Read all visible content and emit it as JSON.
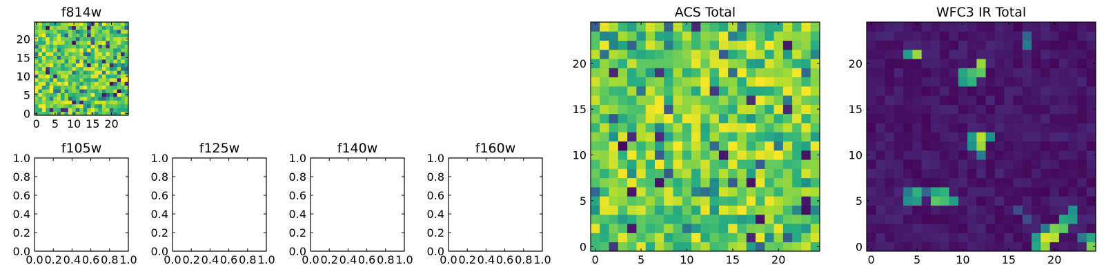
{
  "chart_data": [
    {
      "type": "heatmap",
      "panel": "f814w",
      "title": "f814w",
      "grid_size": [
        25,
        25
      ],
      "colormap": "viridis",
      "xlim": [
        0,
        24
      ],
      "ylim": [
        0,
        24
      ],
      "xticks": [
        "0",
        "5",
        "10",
        "15",
        "20"
      ],
      "yticks": [
        "0",
        "5",
        "10",
        "15",
        "20"
      ],
      "value_range": [
        0.0,
        1.0
      ],
      "pattern": "random noise, values mostly high (green-yellow)"
    },
    {
      "type": "heatmap",
      "panel": "f105w",
      "title": "f105w",
      "empty": true,
      "xlim": [
        0.0,
        1.0
      ],
      "ylim": [
        0.0,
        1.0
      ],
      "xticks": [
        "0.0",
        "0.2",
        "0.4",
        "0.6",
        "0.8",
        "1.0"
      ],
      "yticks": [
        "0.0",
        "0.2",
        "0.4",
        "0.6",
        "0.8",
        "1.0"
      ]
    },
    {
      "type": "heatmap",
      "panel": "f125w",
      "title": "f125w",
      "empty": true,
      "xlim": [
        0.0,
        1.0
      ],
      "ylim": [
        0.0,
        1.0
      ],
      "xticks": [
        "0.0",
        "0.2",
        "0.4",
        "0.6",
        "0.8",
        "1.0"
      ],
      "yticks": [
        "0.0",
        "0.2",
        "0.4",
        "0.6",
        "0.8",
        "1.0"
      ]
    },
    {
      "type": "heatmap",
      "panel": "f140w",
      "title": "f140w",
      "empty": true,
      "xlim": [
        0.0,
        1.0
      ],
      "ylim": [
        0.0,
        1.0
      ],
      "xticks": [
        "0.0",
        "0.2",
        "0.4",
        "0.6",
        "0.8",
        "1.0"
      ],
      "yticks": [
        "0.0",
        "0.2",
        "0.4",
        "0.6",
        "0.8",
        "1.0"
      ]
    },
    {
      "type": "heatmap",
      "panel": "f160w",
      "title": "f160w",
      "empty": true,
      "xlim": [
        0.0,
        1.0
      ],
      "ylim": [
        0.0,
        1.0
      ],
      "xticks": [
        "0.0",
        "0.2",
        "0.4",
        "0.6",
        "0.8",
        "1.0"
      ],
      "yticks": [
        "0.0",
        "0.2",
        "0.4",
        "0.6",
        "0.8",
        "1.0"
      ]
    },
    {
      "type": "heatmap",
      "panel": "acs_total",
      "title": "ACS Total",
      "grid_size": [
        25,
        25
      ],
      "colormap": "viridis",
      "xlim": [
        0,
        24
      ],
      "ylim": [
        0,
        24
      ],
      "xticks": [
        "0",
        "5",
        "10",
        "15",
        "20"
      ],
      "yticks": [
        "0",
        "5",
        "10",
        "15",
        "20"
      ],
      "value_range": [
        0.0,
        1.0
      ],
      "pattern": "random noise, values mostly high (green-yellow), few dark cells"
    },
    {
      "type": "heatmap",
      "panel": "wfc3_ir_total",
      "title": "WFC3 IR Total",
      "grid_size": [
        25,
        25
      ],
      "colormap": "viridis",
      "xlim": [
        0,
        24
      ],
      "ylim": [
        0,
        24
      ],
      "xticks": [
        "0",
        "5",
        "10",
        "15",
        "20"
      ],
      "yticks": [
        "0",
        "5",
        "10",
        "15",
        "20"
      ],
      "value_range": [
        0.0,
        1.0
      ],
      "background_level": 0.08,
      "hotspots": [
        {
          "col": 4,
          "row": 21,
          "value": 0.55
        },
        {
          "col": 5,
          "row": 21,
          "value": 0.85
        },
        {
          "col": 17,
          "row": 23,
          "value": 0.4
        },
        {
          "col": 17,
          "row": 22,
          "value": 0.45
        },
        {
          "col": 10,
          "row": 18,
          "value": 0.55
        },
        {
          "col": 10,
          "row": 19,
          "value": 0.6
        },
        {
          "col": 11,
          "row": 18,
          "value": 0.65
        },
        {
          "col": 11,
          "row": 19,
          "value": 0.7
        },
        {
          "col": 12,
          "row": 19,
          "value": 0.75
        },
        {
          "col": 12,
          "row": 20,
          "value": 0.85
        },
        {
          "col": 11,
          "row": 11,
          "value": 0.5
        },
        {
          "col": 11,
          "row": 12,
          "value": 0.55
        },
        {
          "col": 12,
          "row": 11,
          "value": 0.85
        },
        {
          "col": 12,
          "row": 12,
          "value": 0.9
        },
        {
          "col": 13,
          "row": 12,
          "value": 0.5
        },
        {
          "col": 12,
          "row": 10,
          "value": 0.45
        },
        {
          "col": 4,
          "row": 6,
          "value": 0.45
        },
        {
          "col": 4,
          "row": 5,
          "value": 0.5
        },
        {
          "col": 5,
          "row": 6,
          "value": 0.65
        },
        {
          "col": 5,
          "row": 5,
          "value": 0.55
        },
        {
          "col": 6,
          "row": 6,
          "value": 0.4
        },
        {
          "col": 7,
          "row": 5,
          "value": 0.75
        },
        {
          "col": 7,
          "row": 6,
          "value": 0.6
        },
        {
          "col": 8,
          "row": 5,
          "value": 0.7
        },
        {
          "col": 8,
          "row": 6,
          "value": 0.65
        },
        {
          "col": 9,
          "row": 5,
          "value": 0.55
        },
        {
          "col": 19,
          "row": 0,
          "value": 0.85
        },
        {
          "col": 19,
          "row": 1,
          "value": 0.95
        },
        {
          "col": 20,
          "row": 1,
          "value": 0.9
        },
        {
          "col": 20,
          "row": 2,
          "value": 0.8
        },
        {
          "col": 21,
          "row": 2,
          "value": 0.75
        },
        {
          "col": 18,
          "row": 0,
          "value": 0.6
        },
        {
          "col": 18,
          "row": 1,
          "value": 0.55
        },
        {
          "col": 21,
          "row": 3,
          "value": 0.6
        },
        {
          "col": 22,
          "row": 3,
          "value": 0.55
        },
        {
          "col": 22,
          "row": 4,
          "value": 0.5
        },
        {
          "col": 23,
          "row": 1,
          "value": 0.45
        },
        {
          "col": 24,
          "row": 0,
          "value": 0.8
        },
        {
          "col": 24,
          "row": 1,
          "value": 0.6
        },
        {
          "col": 19,
          "row": 2,
          "value": 0.45
        },
        {
          "col": 17,
          "row": 3,
          "value": 0.3
        },
        {
          "col": 16,
          "row": 4,
          "value": 0.3
        }
      ]
    }
  ]
}
